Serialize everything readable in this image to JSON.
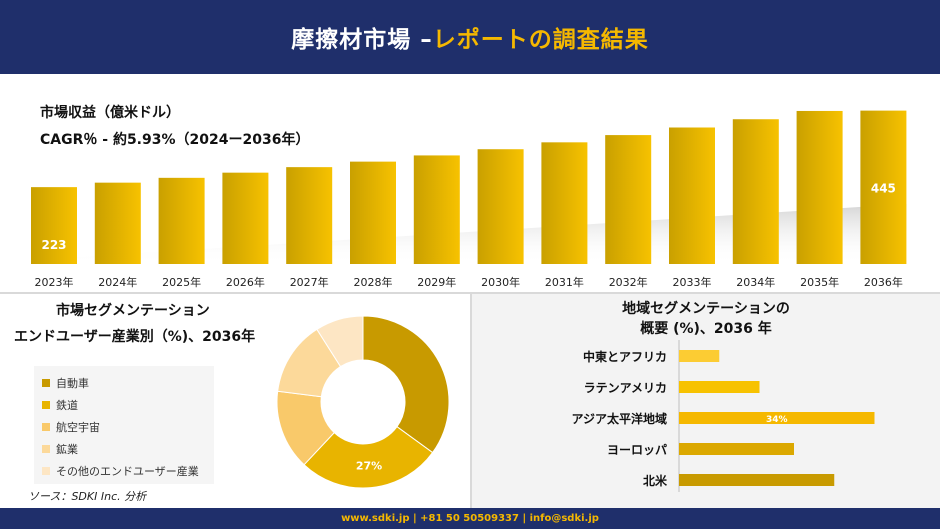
{
  "header": {
    "title_main": "摩擦材市場 –",
    "title_accent": "レポートの調査結果"
  },
  "revenue": {
    "label": "市場収益（億米ドル）",
    "cagr": "CAGR％ - 約5.93%（2024ー2036年）"
  },
  "segment": {
    "title1": "市場セグメンテーション",
    "title2": "エンドユーザー産業別（%)、2036年"
  },
  "region": {
    "title1": "地域セグメンテーションの",
    "title2": "概要 (%)、2036 年"
  },
  "source": "ソース：SDKI Inc. 分析",
  "footer": "www.sdki.jp | +81 50 50509337 | info@sdki.jp",
  "colors": {
    "header_bg": "#1f2f6b",
    "accent": "#f5b800",
    "bar_dark": "#c9a000",
    "bar_light": "#f7c200"
  },
  "chart_data": [
    {
      "type": "bar",
      "categories": [
        "2023年",
        "2024年",
        "2025年",
        "2026年",
        "2027年",
        "2028年",
        "2029年",
        "2030年",
        "2031年",
        "2032年",
        "2033年",
        "2034年",
        "2035年",
        "2036年"
      ],
      "values": [
        223,
        236,
        250,
        265,
        281,
        297,
        315,
        333,
        353,
        374,
        396,
        420,
        444,
        445
      ],
      "data_labels": {
        "0": "223",
        "13": "445"
      },
      "ylim": [
        0,
        470
      ]
    },
    {
      "type": "pie",
      "labels": [
        "自動車",
        "鉄道",
        "航空宇宙",
        "鉱業",
        "その他のエンドユーザー産業"
      ],
      "values": [
        35,
        27,
        15,
        14,
        9
      ],
      "data_labels": {
        "1": "27%"
      },
      "colors": [
        "#c89a00",
        "#e8b400",
        "#f9c96a",
        "#fcd99a",
        "#fde6c4"
      ],
      "legend": "left"
    },
    {
      "type": "bar",
      "orientation": "horizontal",
      "categories": [
        "中東とアフリカ",
        "ラテンアメリカ",
        "アジア太平洋地域",
        "ヨーロッパ",
        "北米"
      ],
      "values": [
        7,
        14,
        34,
        20,
        27
      ],
      "data_labels": {
        "2": "34%"
      },
      "colors": [
        "#fccc33",
        "#f7c200",
        "#f5b800",
        "#dba800",
        "#c89a00"
      ],
      "xlim": [
        0,
        40
      ]
    }
  ]
}
